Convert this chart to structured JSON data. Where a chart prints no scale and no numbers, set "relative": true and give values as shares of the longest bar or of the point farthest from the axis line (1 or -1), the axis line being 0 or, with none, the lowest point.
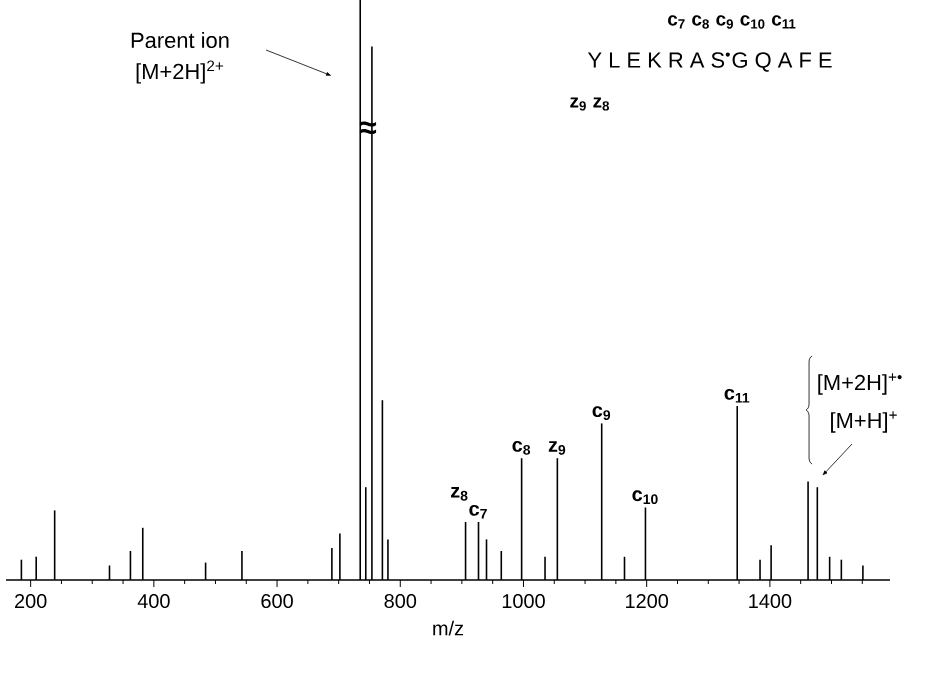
{
  "chart_data": {
    "type": "bar",
    "relative": true,
    "xlabel": "m/z",
    "color": "#000000",
    "x": [
      185,
      209,
      239,
      328,
      362,
      382,
      484,
      543,
      689,
      702,
      735,
      744,
      754,
      771,
      780,
      906,
      927,
      940,
      964,
      997,
      1035,
      1055,
      1127,
      1164,
      1198,
      1347,
      1384,
      1402,
      1462,
      1477,
      1497,
      1516,
      1551
    ],
    "values": [
      0.035,
      0.04,
      0.12,
      0.025,
      0.05,
      0.09,
      0.03,
      0.05,
      0.055,
      0.08,
      1,
      0.16,
      0.92,
      0.31,
      0.07,
      0.1,
      0.1,
      0.07,
      0.05,
      0.21,
      0.04,
      0.21,
      0.27,
      0.04,
      0.125,
      0.3,
      0.035,
      0.06,
      0.17,
      0.16,
      0.04,
      0.035,
      0.025
    ],
    "xlim": [
      160,
      1595
    ],
    "xticks": [
      200,
      {
        "value": 250,
        "label": null
      },
      {
        "value": 300,
        "label": null
      },
      {
        "value": 350,
        "label": null
      },
      400,
      {
        "value": 450,
        "label": null
      },
      {
        "value": 500,
        "label": null
      },
      {
        "value": 550,
        "label": null
      },
      600,
      {
        "value": 650,
        "label": null
      },
      {
        "value": 700,
        "label": null
      },
      {
        "value": 750,
        "label": null
      },
      800,
      {
        "value": 850,
        "label": null
      },
      {
        "value": 900,
        "label": null
      },
      {
        "value": 950,
        "label": null
      },
      1000,
      {
        "value": 1050,
        "label": null
      },
      {
        "value": 1100,
        "label": null
      },
      {
        "value": 1150,
        "label": null
      },
      1200,
      {
        "value": 1250,
        "label": null
      },
      {
        "value": 1300,
        "label": null
      },
      {
        "value": 1350,
        "label": null
      },
      1400,
      {
        "value": 1450,
        "label": null
      },
      {
        "value": 1500,
        "label": null
      },
      {
        "value": 1550,
        "label": null
      }
    ],
    "annotations": [
      "Parent ion",
      "[M+2H]$^{2+}$",
      "c$_{7}$ c$_{8}$ c$_{9}$ c$_{10}$ c$_{11}$",
      "Y L E K R A S$^{•}$G Q A F E",
      "z$_{9}$ z$_{8}$",
      "≈",
      "[M+2H]$^{+•}$",
      "[M+H]$^{+}$",
      {
        "text": "z$_{8}$",
        "x": 906,
        "y": 0.1
      },
      {
        "text": "c$_{7}$",
        "x": 927,
        "y": 0.1
      },
      {
        "text": "c$_{8}$",
        "x": 997,
        "y": 0.21
      },
      {
        "text": "z$_{9}$",
        "x": 1055,
        "y": 0.21
      },
      {
        "text": "c$_{9}$",
        "x": 1127,
        "y": 0.27
      },
      {
        "text": "c$_{10}$",
        "x": 1198,
        "y": 0.125
      },
      {
        "text": "c$_{11}$",
        "x": 1347,
        "y": 0.3
      }
    ]
  }
}
